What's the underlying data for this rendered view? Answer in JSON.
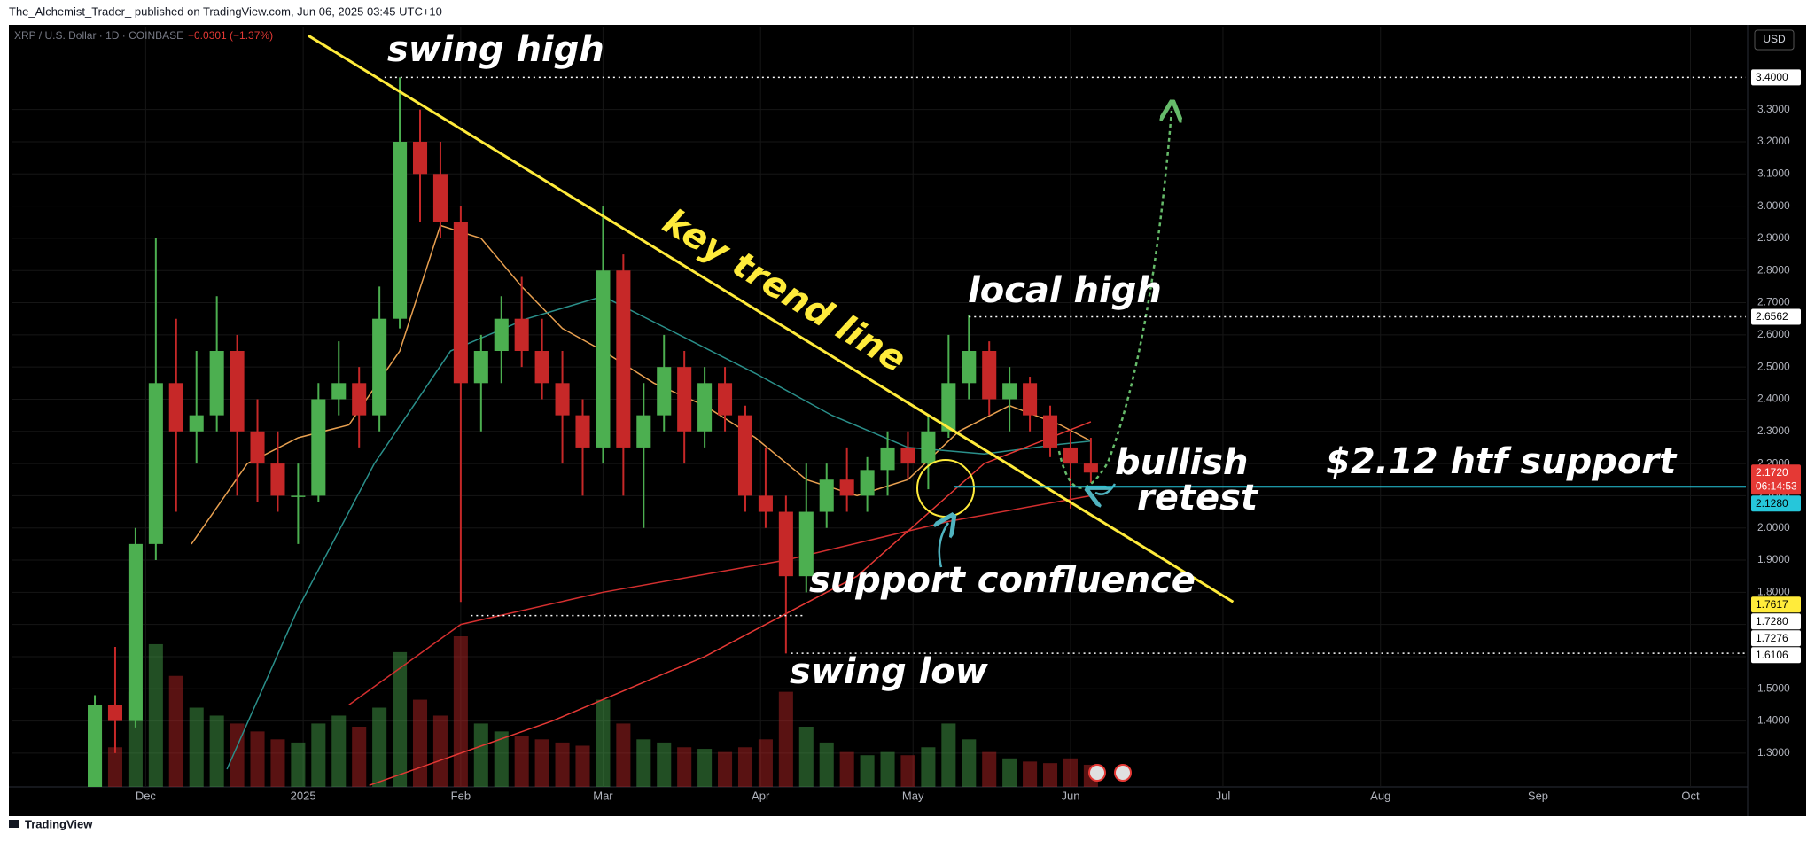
{
  "header": {
    "publisher": "The_Alchemist_Trader_ published on TradingView.com, Jun 06, 2025 03:45 UTC+10",
    "currency": "USD",
    "footer": "TradingView"
  },
  "chart_data": {
    "type": "candlestick",
    "title": "XRP / U.S. Dollar · 1D · COINBASE",
    "change": "−0.0301 (−1.37%)",
    "x": [
      -10,
      -6,
      -2,
      2,
      6,
      10,
      14,
      18,
      22,
      26,
      30,
      34,
      38,
      42,
      46,
      50,
      54,
      58,
      62,
      66,
      70,
      74,
      78,
      82,
      86,
      90,
      94,
      98,
      102,
      106,
      110,
      114,
      118,
      122,
      126,
      130,
      134,
      138,
      142,
      146,
      150,
      154,
      158,
      162,
      166,
      170,
      174,
      178,
      182,
      186
    ],
    "open": [
      1.1,
      1.45,
      1.4,
      1.95,
      2.45,
      2.3,
      2.35,
      2.55,
      2.3,
      2.2,
      2.1,
      2.1,
      2.4,
      2.45,
      2.35,
      2.65,
      3.2,
      3.1,
      2.95,
      2.45,
      2.55,
      2.65,
      2.55,
      2.45,
      2.35,
      2.25,
      2.8,
      2.25,
      2.35,
      2.5,
      2.3,
      2.45,
      2.35,
      2.1,
      2.05,
      1.85,
      2.05,
      2.15,
      2.1,
      2.18,
      2.25,
      2.2,
      2.3,
      2.45,
      2.55,
      2.4,
      2.45,
      2.35,
      2.25,
      2.2
    ],
    "high": [
      1.48,
      1.63,
      2.0,
      2.9,
      2.65,
      2.55,
      2.72,
      2.6,
      2.4,
      2.3,
      2.2,
      2.45,
      2.58,
      2.5,
      2.75,
      3.4,
      3.3,
      3.2,
      3.0,
      2.6,
      2.72,
      2.78,
      2.65,
      2.55,
      2.4,
      3.0,
      2.85,
      2.45,
      2.6,
      2.55,
      2.5,
      2.5,
      2.38,
      2.25,
      2.1,
      2.2,
      2.2,
      2.25,
      2.22,
      2.3,
      2.3,
      2.35,
      2.6,
      2.66,
      2.58,
      2.5,
      2.47,
      2.38,
      2.3,
      2.28
    ],
    "low": [
      1.08,
      1.3,
      1.38,
      1.9,
      2.05,
      2.2,
      2.3,
      2.1,
      2.08,
      2.05,
      1.95,
      2.08,
      2.35,
      2.25,
      2.3,
      2.62,
      2.95,
      2.9,
      1.77,
      2.3,
      2.45,
      2.5,
      2.4,
      2.2,
      2.1,
      2.2,
      2.1,
      2.0,
      2.3,
      2.2,
      2.25,
      2.3,
      2.05,
      2.0,
      1.61,
      1.8,
      2.0,
      2.05,
      2.05,
      2.1,
      2.15,
      2.12,
      2.28,
      2.4,
      2.35,
      2.3,
      2.3,
      2.22,
      2.06,
      2.14
    ],
    "close": [
      1.45,
      1.4,
      1.95,
      2.45,
      2.3,
      2.35,
      2.55,
      2.3,
      2.2,
      2.1,
      2.1,
      2.4,
      2.45,
      2.35,
      2.65,
      3.2,
      3.1,
      2.95,
      2.45,
      2.55,
      2.65,
      2.55,
      2.45,
      2.35,
      2.25,
      2.8,
      2.25,
      2.35,
      2.5,
      2.3,
      2.45,
      2.35,
      2.1,
      2.05,
      1.85,
      2.05,
      2.15,
      2.1,
      2.18,
      2.25,
      2.2,
      2.3,
      2.45,
      2.55,
      2.4,
      2.45,
      2.35,
      2.25,
      2.2,
      2.172
    ],
    "volume": [
      30,
      25,
      60,
      90,
      70,
      50,
      45,
      40,
      35,
      30,
      28,
      40,
      45,
      38,
      50,
      85,
      55,
      45,
      95,
      40,
      35,
      32,
      30,
      28,
      26,
      55,
      40,
      30,
      28,
      25,
      24,
      22,
      25,
      30,
      60,
      38,
      28,
      22,
      20,
      22,
      20,
      25,
      40,
      30,
      22,
      18,
      16,
      15,
      18,
      14
    ],
    "up_color": "#4caf50",
    "down_color": "#c62828",
    "xlim": [
      -26.4,
      314.9
    ],
    "xticks": [
      {
        "value": 0,
        "label": "Dec"
      },
      {
        "value": 31,
        "label": "2025"
      },
      {
        "value": 62,
        "label": "Feb"
      },
      {
        "value": 90,
        "label": "Mar"
      },
      {
        "value": 121,
        "label": "Apr"
      },
      {
        "value": 151,
        "label": "May"
      },
      {
        "value": 182,
        "label": "Jun"
      },
      {
        "value": 212,
        "label": "Jul"
      },
      {
        "value": 243,
        "label": "Aug"
      },
      {
        "value": 274,
        "label": "Sep"
      },
      {
        "value": 304,
        "label": "Oct"
      }
    ],
    "ylim": [
      1.195,
      3.558
    ],
    "yticks": [
      {
        "value": 1.3,
        "label": "1.3000"
      },
      {
        "value": 1.4,
        "label": "1.4000"
      },
      {
        "value": 1.5,
        "label": "1.5000"
      },
      {
        "value": 1.6,
        "label": "1.6000"
      },
      {
        "value": 1.7,
        "label": "1.7000"
      },
      {
        "value": 1.8,
        "label": "1.8000"
      },
      {
        "value": 1.9,
        "label": "1.9000"
      },
      {
        "value": 2.0,
        "label": "2.0000"
      },
      {
        "value": 2.1,
        "label": "2.1000"
      },
      {
        "value": 2.2,
        "label": "2.2000"
      },
      {
        "value": 2.3,
        "label": "2.3000"
      },
      {
        "value": 2.4,
        "label": "2.4000"
      },
      {
        "value": 2.5,
        "label": "2.5000"
      },
      {
        "value": 2.6,
        "label": "2.6000"
      },
      {
        "value": 2.7,
        "label": "2.7000"
      },
      {
        "value": 2.8,
        "label": "2.8000"
      },
      {
        "value": 2.9,
        "label": "2.9000"
      },
      {
        "value": 3.0,
        "label": "3.0000"
      },
      {
        "value": 3.1,
        "label": "3.1000"
      },
      {
        "value": 3.2,
        "label": "3.2000"
      },
      {
        "value": 3.3,
        "label": "3.3000"
      }
    ],
    "grid": true,
    "moving_averages": [
      {
        "color": "#e8a050",
        "x": [
          9,
          20,
          30,
          40,
          50,
          58,
          66,
          74,
          82,
          90,
          100,
          110,
          120,
          130,
          140,
          150,
          160,
          170,
          180,
          186
        ],
        "values": [
          1.95,
          2.2,
          2.28,
          2.32,
          2.55,
          2.94,
          2.9,
          2.75,
          2.62,
          2.55,
          2.45,
          2.38,
          2.28,
          2.15,
          2.1,
          2.15,
          2.3,
          2.38,
          2.32,
          2.27
        ]
      },
      {
        "color": "#2a8f8a",
        "x": [
          16,
          30,
          45,
          60,
          75,
          90,
          105,
          120,
          135,
          150,
          165,
          180,
          186
        ],
        "values": [
          1.25,
          1.75,
          2.2,
          2.55,
          2.65,
          2.72,
          2.6,
          2.48,
          2.35,
          2.25,
          2.23,
          2.26,
          2.27
        ]
      },
      {
        "color": "#e53935",
        "x": [
          44,
          80,
          110,
          140,
          165,
          186
        ],
        "values": [
          1.2,
          1.4,
          1.6,
          1.85,
          2.2,
          2.33
        ]
      },
      {
        "color": "#d32f2f",
        "x": [
          40,
          62,
          90,
          126,
          158,
          186
        ],
        "values": [
          1.45,
          1.7,
          1.8,
          1.9,
          2.02,
          2.1
        ]
      }
    ],
    "trend_line": {
      "color": "#ffeb3b",
      "x": [
        32,
        214
      ],
      "y": [
        3.53,
        1.77
      ]
    },
    "levels": [
      {
        "value": 3.4,
        "label": "3.4000",
        "x": [
          47,
          314.9
        ],
        "color": "#ffffff",
        "style": "dotted"
      },
      {
        "value": 2.6562,
        "label": "2.6562",
        "x": [
          162,
          314.9
        ],
        "color": "#ffffff",
        "style": "dotted"
      },
      {
        "value": 2.128,
        "label": "2.1280",
        "x": [
          159,
          314.9
        ],
        "color": "#26c6da",
        "style": "solid"
      },
      {
        "value": 1.7276,
        "label": "1.7276",
        "x": [
          64,
          130
        ],
        "color": "#ffffff",
        "style": "dotted"
      },
      {
        "value": 1.6106,
        "label": "1.6106",
        "x": [
          127,
          314.9
        ],
        "color": "#ffffff",
        "style": "dotted"
      }
    ],
    "price_labels": [
      {
        "value": 2.172,
        "label": "2.1720",
        "countdown": "06:14:53",
        "color": "#e53935",
        "text_color": "#ffffff"
      },
      {
        "value": 1.7617,
        "label": "1.7617",
        "color": "#ffeb3b",
        "text_color": "#000000"
      },
      {
        "value": 1.728,
        "label": "1.7280",
        "color": "#ffffff",
        "text_color": "#000000"
      }
    ],
    "annotations": [
      {
        "text": "swing high",
        "color": "#ffffff"
      },
      {
        "text": "key trend line",
        "color": "#ffeb3b"
      },
      {
        "text": "local high",
        "color": "#ffffff"
      },
      {
        "text": "bullish",
        "color": "#ffffff"
      },
      {
        "text": "retest",
        "color": "#ffffff"
      },
      {
        "text": "$2.12 htf support",
        "color": "#ffffff"
      },
      {
        "text": "support confluence",
        "color": "#ffffff"
      },
      {
        "text": "swing low",
        "color": "#ffffff"
      }
    ]
  }
}
